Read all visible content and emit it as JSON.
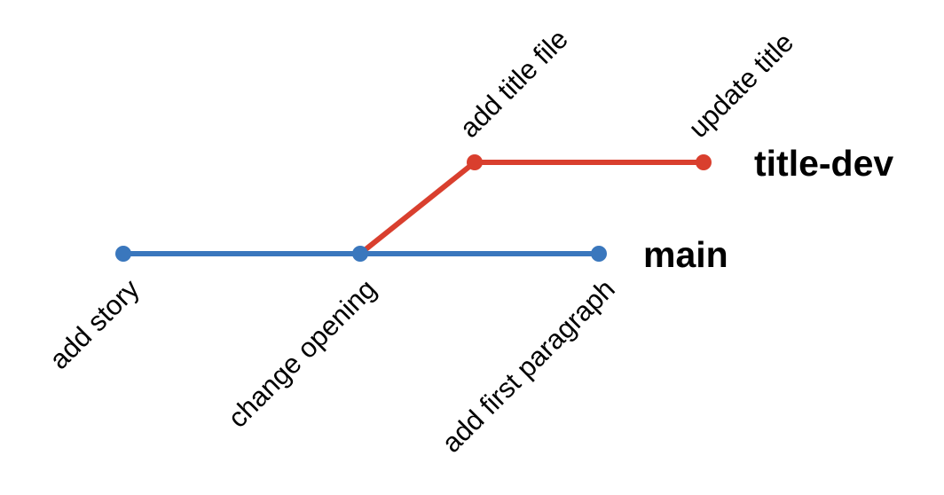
{
  "branches": [
    {
      "name": "main",
      "color": "#3A77BD",
      "commits": [
        "add story",
        "change opening",
        "add first paragraph"
      ]
    },
    {
      "name": "title-dev",
      "color": "#D93F2E",
      "branches_from": "change opening",
      "commits": [
        "add title file",
        "update title"
      ]
    }
  ]
}
